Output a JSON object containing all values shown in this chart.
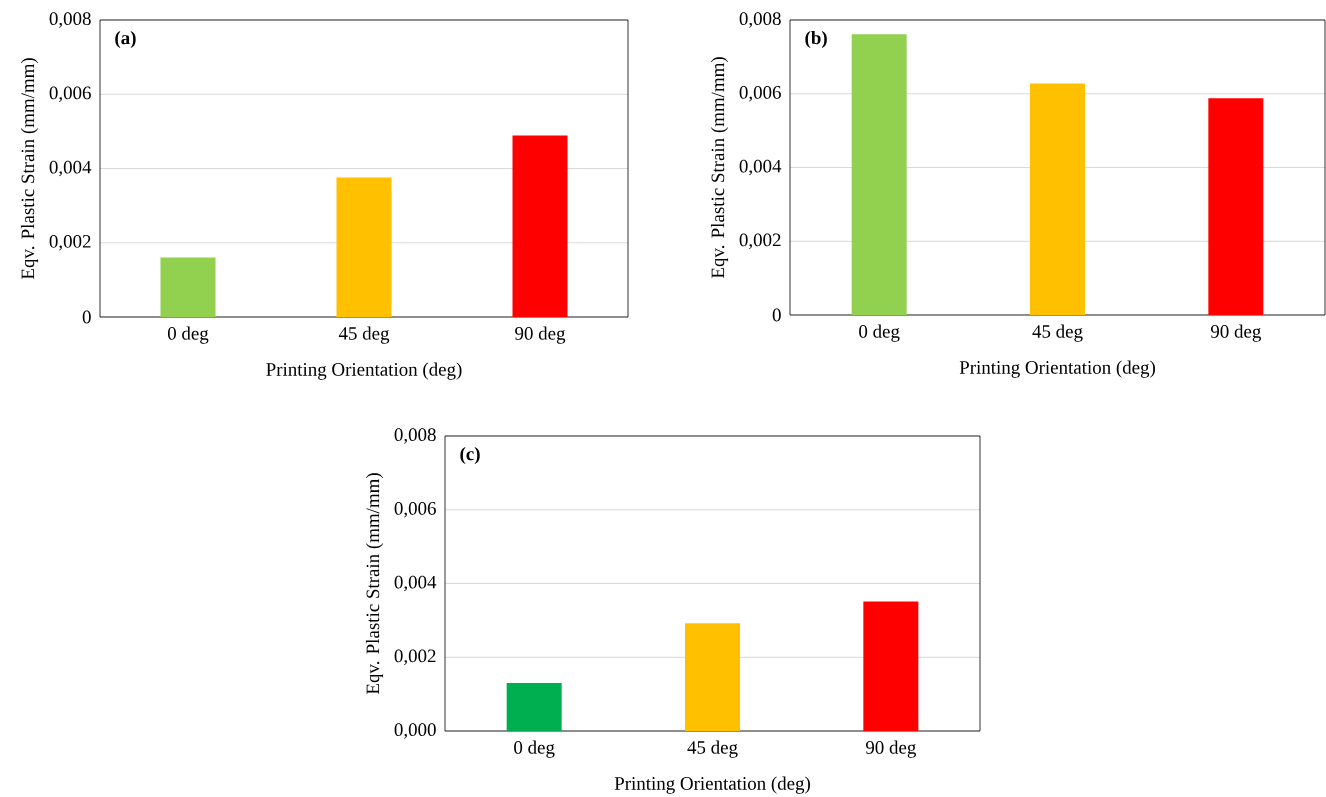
{
  "chart_data": [
    {
      "type": "bar",
      "title": "(a)",
      "categories": [
        "0 deg",
        "45 deg",
        "90 deg"
      ],
      "values": [
        0.0016,
        0.00376,
        0.00489
      ],
      "colors": [
        "#92d050",
        "#ffc000",
        "#ff0000"
      ],
      "xlabel": "Printing Orientation (deg)",
      "ylabel": "Eqv. Plastic Strain (mm/mm)",
      "ylim": [
        0,
        0.008
      ],
      "yticks": [
        0,
        {
          "value": 0.002,
          "label": "0,002"
        },
        {
          "value": 0.004,
          "label": "0,004"
        },
        {
          "value": 0.006,
          "label": "0,006"
        },
        {
          "value": 0.008,
          "label": "0,008"
        }
      ],
      "grid": "y"
    },
    {
      "type": "bar",
      "title": "(b)",
      "categories": [
        "0 deg",
        "45 deg",
        "90 deg"
      ],
      "values": [
        0.00761,
        0.00628,
        0.00588
      ],
      "colors": [
        "#92d050",
        "#ffc000",
        "#ff0000"
      ],
      "xlabel": "Printing Orientation (deg)",
      "ylabel": "Eqv. Plastic Strain (mm/mm)",
      "ylim": [
        0,
        0.008
      ],
      "yticks": [
        0,
        {
          "value": 0.002,
          "label": "0,002"
        },
        {
          "value": 0.004,
          "label": "0,004"
        },
        {
          "value": 0.006,
          "label": "0,006"
        },
        {
          "value": 0.008,
          "label": "0,008"
        }
      ],
      "grid": "y"
    },
    {
      "type": "bar",
      "title": "(c)",
      "categories": [
        "0 deg",
        "45 deg",
        "90 deg"
      ],
      "values": [
        0.0013,
        0.00292,
        0.00351
      ],
      "colors": [
        "#00b050",
        "#ffc000",
        "#ff0000"
      ],
      "xlabel": "Printing Orientation (deg)",
      "ylabel": "Eqv. Plastic Strain (mm/mm)",
      "ylim": [
        0,
        0.008
      ],
      "yticks": [
        {
          "value": 0,
          "label": "0,000"
        },
        {
          "value": 0.002,
          "label": "0,002"
        },
        {
          "value": 0.004,
          "label": "0,004"
        },
        {
          "value": 0.006,
          "label": "0,006"
        },
        {
          "value": 0.008,
          "label": "0,008"
        }
      ],
      "grid": "y"
    }
  ]
}
